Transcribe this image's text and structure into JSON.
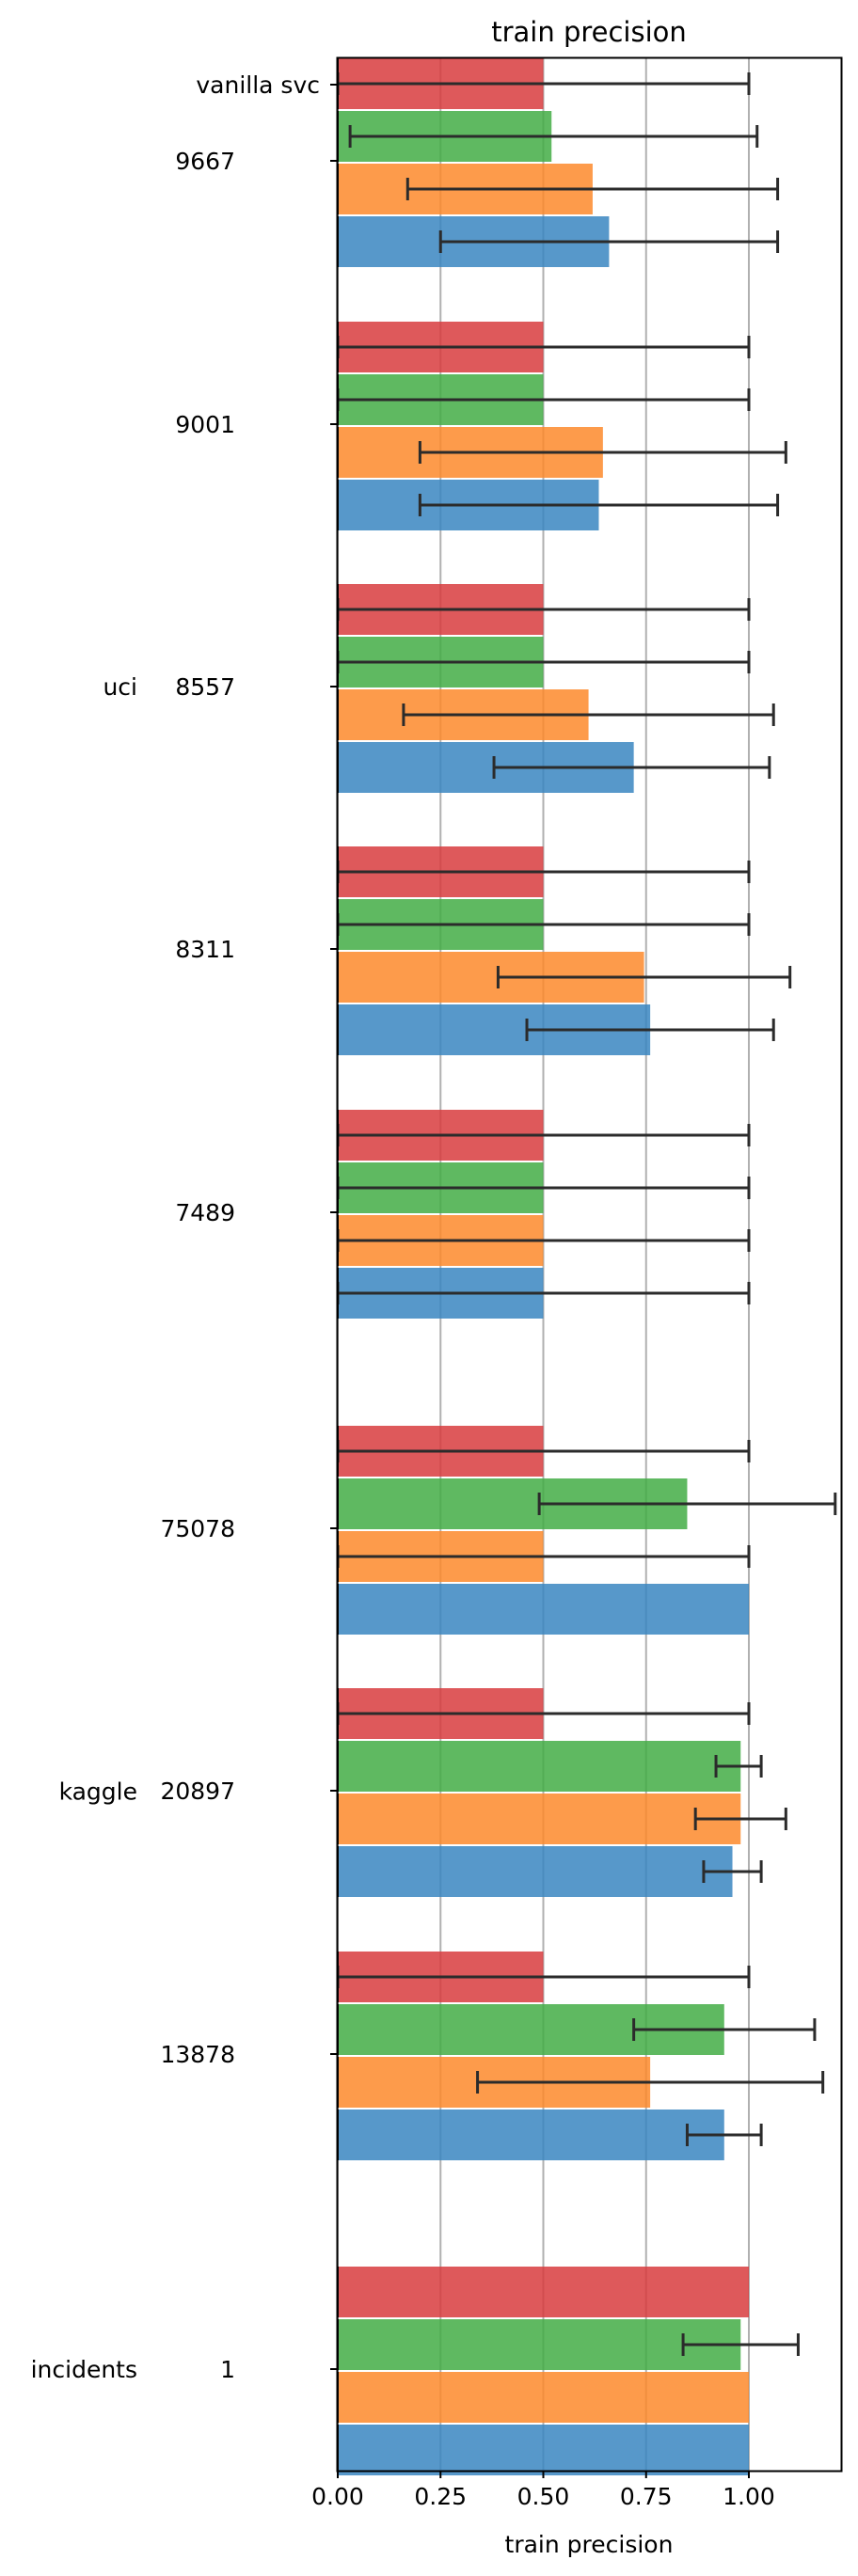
{
  "chart_data": {
    "type": "bar",
    "orientation": "horizontal",
    "title": "train precision",
    "xlabel": "train precision",
    "ylabel": "",
    "xlim": [
      0,
      1.22
    ],
    "xticks": [
      "0.00",
      "0.25",
      "0.50",
      "0.75",
      "1.00"
    ],
    "xtick_values": [
      0,
      0.25,
      0.5,
      0.75,
      1.0
    ],
    "grid": "vertical",
    "legend": "none",
    "colors": [
      "#3a86c1",
      "#fd8a2b",
      "#43ad45",
      "#d83c3e"
    ],
    "groups": [
      {
        "label": "uci",
        "datasets": [
          {
            "label": "9667",
            "extra_label": "vanilla svc",
            "bars": [
              {
                "value": 0.66,
                "err_low": 0.25,
                "err_high": 1.07
              },
              {
                "value": 0.62,
                "err_low": 0.17,
                "err_high": 1.07
              },
              {
                "value": 0.52,
                "err_low": 0.03,
                "err_high": 1.02
              },
              {
                "value": 0.5,
                "err_low": 0.0,
                "err_high": 1.0
              }
            ]
          },
          {
            "label": "9001",
            "bars": [
              {
                "value": 0.635,
                "err_low": 0.2,
                "err_high": 1.07
              },
              {
                "value": 0.645,
                "err_low": 0.2,
                "err_high": 1.09
              },
              {
                "value": 0.5,
                "err_low": 0.0,
                "err_high": 1.0
              },
              {
                "value": 0.5,
                "err_low": 0.0,
                "err_high": 1.0
              }
            ]
          },
          {
            "label": "8557",
            "bars": [
              {
                "value": 0.72,
                "err_low": 0.38,
                "err_high": 1.05
              },
              {
                "value": 0.61,
                "err_low": 0.16,
                "err_high": 1.06
              },
              {
                "value": 0.5,
                "err_low": 0.0,
                "err_high": 1.0
              },
              {
                "value": 0.5,
                "err_low": 0.0,
                "err_high": 1.0
              }
            ]
          },
          {
            "label": "8311",
            "bars": [
              {
                "value": 0.76,
                "err_low": 0.46,
                "err_high": 1.06
              },
              {
                "value": 0.745,
                "err_low": 0.39,
                "err_high": 1.1
              },
              {
                "value": 0.5,
                "err_low": 0.0,
                "err_high": 1.0
              },
              {
                "value": 0.5,
                "err_low": 0.0,
                "err_high": 1.0
              }
            ]
          },
          {
            "label": "7489",
            "bars": [
              {
                "value": 0.5,
                "err_low": 0.0,
                "err_high": 1.0
              },
              {
                "value": 0.5,
                "err_low": 0.0,
                "err_high": 1.0
              },
              {
                "value": 0.5,
                "err_low": 0.0,
                "err_high": 1.0
              },
              {
                "value": 0.5,
                "err_low": 0.0,
                "err_high": 1.0
              }
            ]
          }
        ]
      },
      {
        "label": "kaggle",
        "datasets": [
          {
            "label": "75078",
            "bars": [
              {
                "value": 1.0
              },
              {
                "value": 0.5,
                "err_low": 0.0,
                "err_high": 1.0
              },
              {
                "value": 0.85,
                "err_low": 0.49,
                "err_high": 1.21
              },
              {
                "value": 0.5,
                "err_low": 0.0,
                "err_high": 1.0
              }
            ]
          },
          {
            "label": "20897",
            "bars": [
              {
                "value": 0.96,
                "err_low": 0.89,
                "err_high": 1.03
              },
              {
                "value": 0.98,
                "err_low": 0.87,
                "err_high": 1.09
              },
              {
                "value": 0.98,
                "err_low": 0.92,
                "err_high": 1.03
              },
              {
                "value": 0.5,
                "err_low": 0.0,
                "err_high": 1.0
              }
            ]
          },
          {
            "label": "13878",
            "bars": [
              {
                "value": 0.94,
                "err_low": 0.85,
                "err_high": 1.03
              },
              {
                "value": 0.76,
                "err_low": 0.34,
                "err_high": 1.18
              },
              {
                "value": 0.94,
                "err_low": 0.72,
                "err_high": 1.16
              },
              {
                "value": 0.5,
                "err_low": 0.0,
                "err_high": 1.0
              }
            ]
          }
        ]
      },
      {
        "label": "incidents",
        "datasets": [
          {
            "label": "1",
            "bars": [
              {
                "value": 1.0
              },
              {
                "value": 1.0
              },
              {
                "value": 0.98,
                "err_low": 0.84,
                "err_high": 1.12
              },
              {
                "value": 1.0
              }
            ]
          }
        ]
      }
    ]
  }
}
